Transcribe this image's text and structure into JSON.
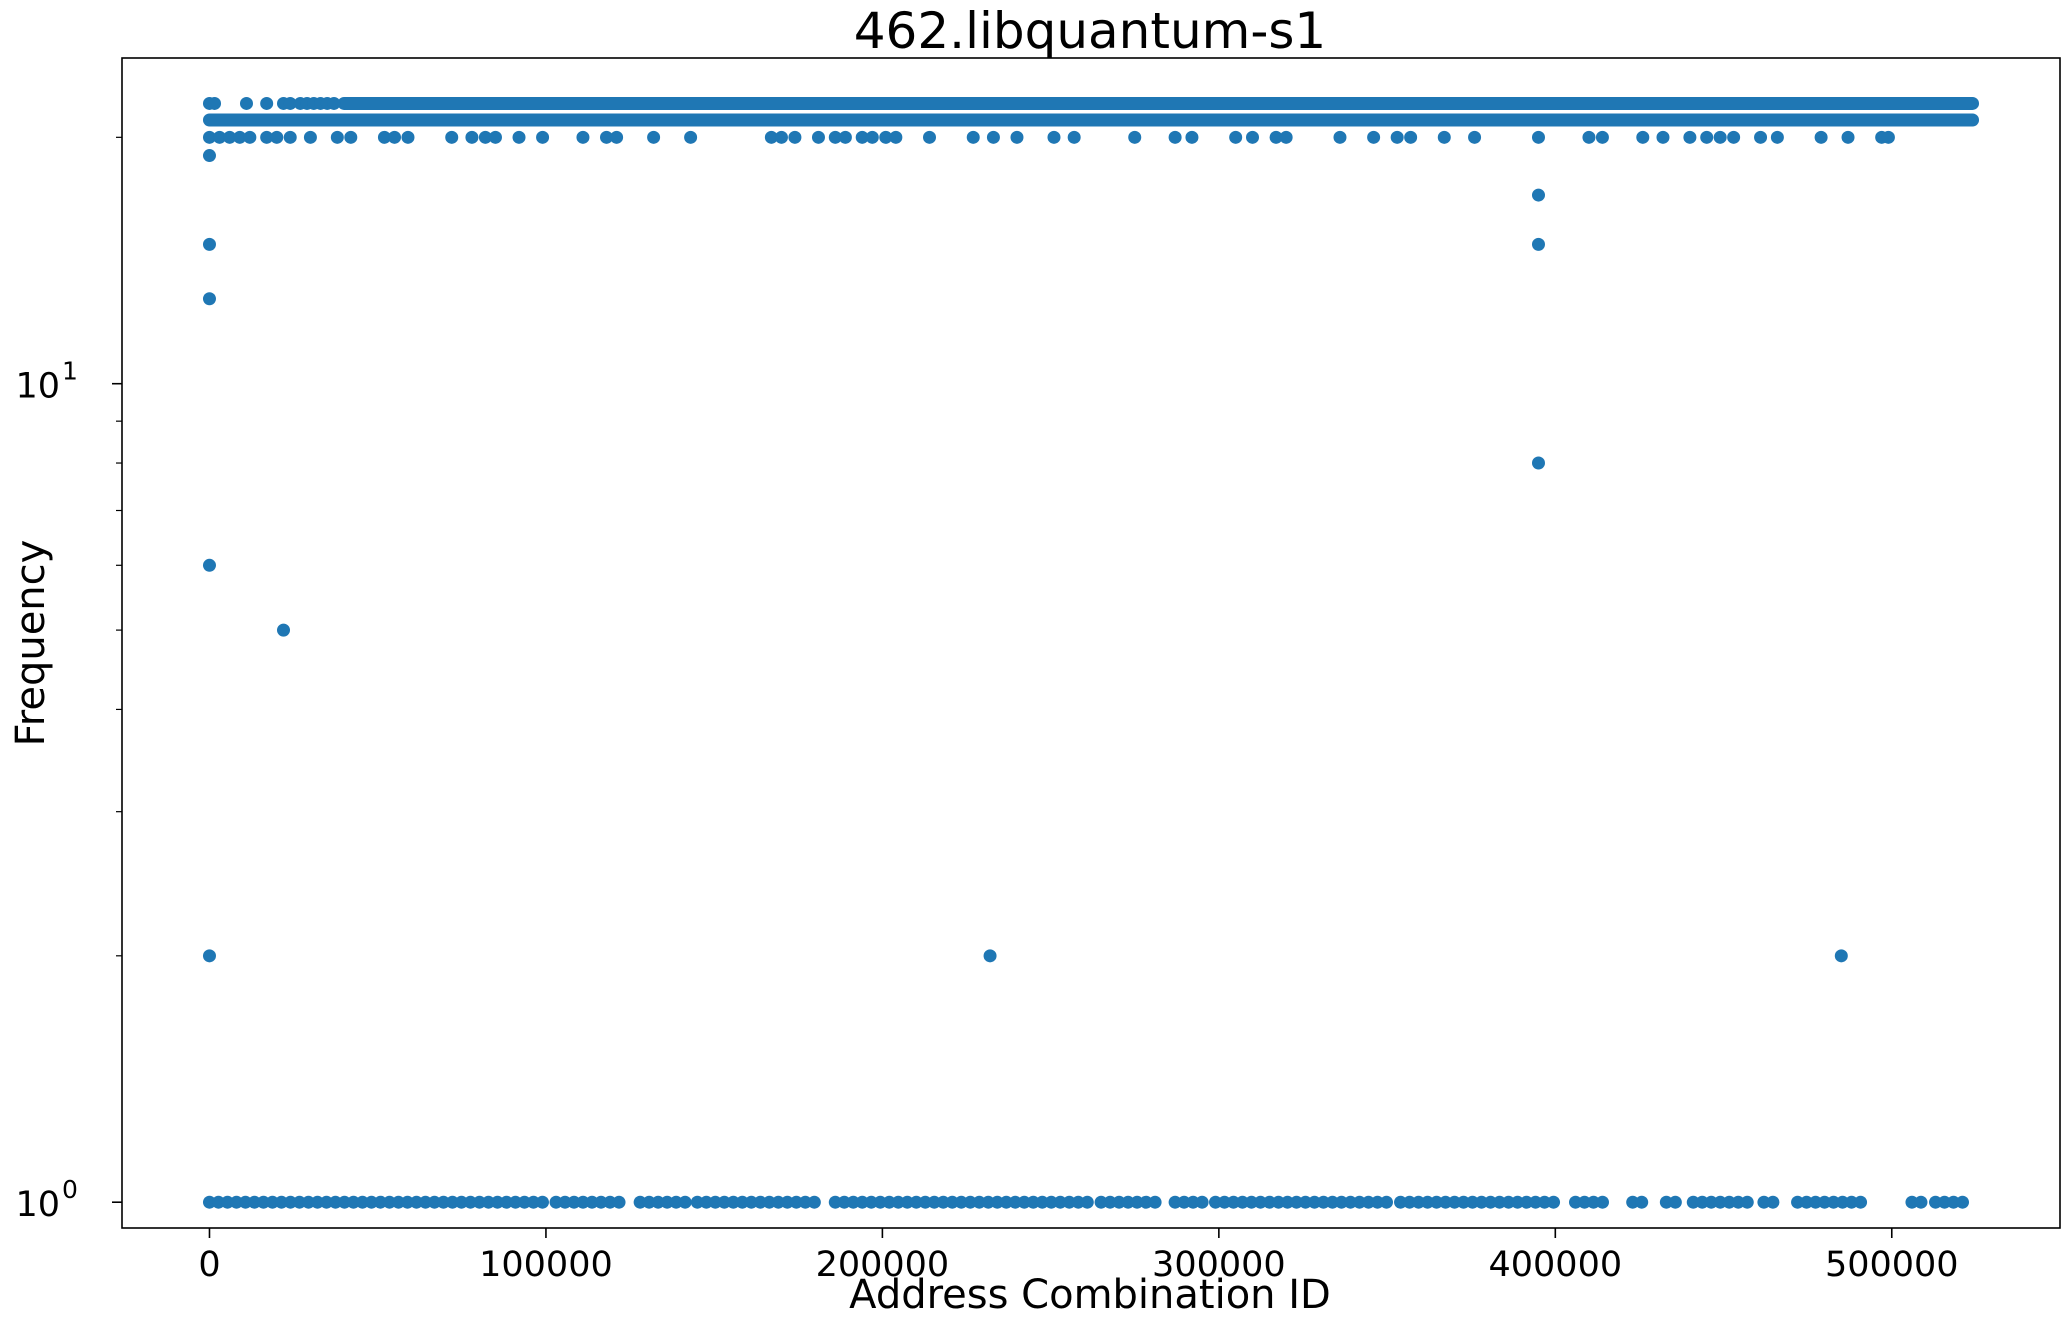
{
  "chart_data": {
    "type": "scatter",
    "title": "462.libquantum-s1",
    "xlabel": "Address Combination ID",
    "ylabel": "Frequency",
    "xlim": [
      -26000,
      550000
    ],
    "ylim": [
      0.93,
      25
    ],
    "yscale": "log",
    "grid": false,
    "legend": "none",
    "xticks": [
      0,
      100000,
      200000,
      300000,
      400000,
      500000
    ],
    "xtick_labels": [
      "0",
      "100000",
      "200000",
      "300000",
      "400000",
      "500000"
    ],
    "yticks": [
      1,
      10
    ],
    "ytick_labels": [
      {
        "base": "10",
        "exp": "0"
      },
      {
        "base": "10",
        "exp": "1"
      }
    ],
    "series": [
      {
        "color": "#1f77b4",
        "bands": [
          {
            "y": 22,
            "x_start": 40000,
            "x_end": 524000
          },
          {
            "y": 21,
            "x_start": 0,
            "x_end": 524000
          }
        ],
        "points": [
          {
            "x": 0,
            "y": 22
          },
          {
            "x": 1500,
            "y": 22
          },
          {
            "x": 11000,
            "y": 22
          },
          {
            "x": 17000,
            "y": 22
          },
          {
            "x": 22000,
            "y": 22
          },
          {
            "x": 24000,
            "y": 22
          },
          {
            "x": 27000,
            "y": 22
          },
          {
            "x": 29000,
            "y": 22
          },
          {
            "x": 31000,
            "y": 22
          },
          {
            "x": 33000,
            "y": 22
          },
          {
            "x": 35000,
            "y": 22
          },
          {
            "x": 37000,
            "y": 22
          },
          {
            "x": 0,
            "y": 20
          },
          {
            "x": 3000,
            "y": 20
          },
          {
            "x": 6000,
            "y": 20
          },
          {
            "x": 9000,
            "y": 20
          },
          {
            "x": 12000,
            "y": 20
          },
          {
            "x": 17000,
            "y": 20
          },
          {
            "x": 20000,
            "y": 20
          },
          {
            "x": 24000,
            "y": 20
          },
          {
            "x": 30000,
            "y": 20
          },
          {
            "x": 38000,
            "y": 20
          },
          {
            "x": 42000,
            "y": 20
          },
          {
            "x": 52000,
            "y": 20
          },
          {
            "x": 55000,
            "y": 20
          },
          {
            "x": 59000,
            "y": 20
          },
          {
            "x": 72000,
            "y": 20
          },
          {
            "x": 78000,
            "y": 20
          },
          {
            "x": 82000,
            "y": 20
          },
          {
            "x": 85000,
            "y": 20
          },
          {
            "x": 92000,
            "y": 20
          },
          {
            "x": 99000,
            "y": 20
          },
          {
            "x": 111000,
            "y": 20
          },
          {
            "x": 118000,
            "y": 20
          },
          {
            "x": 121000,
            "y": 20
          },
          {
            "x": 132000,
            "y": 20
          },
          {
            "x": 143000,
            "y": 20
          },
          {
            "x": 167000,
            "y": 20
          },
          {
            "x": 170000,
            "y": 20
          },
          {
            "x": 174000,
            "y": 20
          },
          {
            "x": 181000,
            "y": 20
          },
          {
            "x": 186000,
            "y": 20
          },
          {
            "x": 189000,
            "y": 20
          },
          {
            "x": 194000,
            "y": 20
          },
          {
            "x": 197000,
            "y": 20
          },
          {
            "x": 201000,
            "y": 20
          },
          {
            "x": 204000,
            "y": 20
          },
          {
            "x": 214000,
            "y": 20
          },
          {
            "x": 227000,
            "y": 20
          },
          {
            "x": 233000,
            "y": 20
          },
          {
            "x": 240000,
            "y": 20
          },
          {
            "x": 251000,
            "y": 20
          },
          {
            "x": 257000,
            "y": 20
          },
          {
            "x": 275000,
            "y": 20
          },
          {
            "x": 287000,
            "y": 20
          },
          {
            "x": 292000,
            "y": 20
          },
          {
            "x": 305000,
            "y": 20
          },
          {
            "x": 310000,
            "y": 20
          },
          {
            "x": 317000,
            "y": 20
          },
          {
            "x": 320000,
            "y": 20
          },
          {
            "x": 336000,
            "y": 20
          },
          {
            "x": 346000,
            "y": 20
          },
          {
            "x": 353000,
            "y": 20
          },
          {
            "x": 357000,
            "y": 20
          },
          {
            "x": 367000,
            "y": 20
          },
          {
            "x": 376000,
            "y": 20
          },
          {
            "x": 395000,
            "y": 20
          },
          {
            "x": 410000,
            "y": 20
          },
          {
            "x": 414000,
            "y": 20
          },
          {
            "x": 426000,
            "y": 20
          },
          {
            "x": 432000,
            "y": 20
          },
          {
            "x": 440000,
            "y": 20
          },
          {
            "x": 445000,
            "y": 20
          },
          {
            "x": 449000,
            "y": 20
          },
          {
            "x": 453000,
            "y": 20
          },
          {
            "x": 461000,
            "y": 20
          },
          {
            "x": 466000,
            "y": 20
          },
          {
            "x": 479000,
            "y": 20
          },
          {
            "x": 487000,
            "y": 20
          },
          {
            "x": 497000,
            "y": 20
          },
          {
            "x": 499000,
            "y": 20
          },
          {
            "x": 0,
            "y": 19
          },
          {
            "x": 0,
            "y": 14.8
          },
          {
            "x": 0,
            "y": 12.7
          },
          {
            "x": 0,
            "y": 6
          },
          {
            "x": 0,
            "y": 2
          },
          {
            "x": 22000,
            "y": 5
          },
          {
            "x": 395000,
            "y": 17
          },
          {
            "x": 395000,
            "y": 14.8
          },
          {
            "x": 395000,
            "y": 8
          },
          {
            "x": 232000,
            "y": 2
          },
          {
            "x": 485000,
            "y": 2
          }
        ],
        "ones": [
          {
            "x_start": 0,
            "x_end": 100000
          },
          {
            "x_start": 103000,
            "x_end": 123000
          },
          {
            "x_start": 128000,
            "x_end": 142000
          },
          {
            "x_start": 145000,
            "x_end": 180000
          },
          {
            "x_start": 186000,
            "x_end": 262000
          },
          {
            "x_start": 265000,
            "x_end": 283000
          },
          {
            "x_start": 287000,
            "x_end": 296000
          },
          {
            "x_start": 299000,
            "x_end": 351000
          },
          {
            "x_start": 354000,
            "x_end": 402000
          },
          {
            "x_start": 406000,
            "x_end": 415000
          },
          {
            "x_start": 423000,
            "x_end": 426000
          },
          {
            "x_start": 433000,
            "x_end": 436000
          },
          {
            "x_start": 441000,
            "x_end": 459000
          },
          {
            "x_start": 462000,
            "x_end": 466000
          },
          {
            "x_start": 472000,
            "x_end": 491000
          },
          {
            "x_start": 506000,
            "x_end": 510000
          },
          {
            "x_start": 513000,
            "x_end": 523000
          }
        ]
      }
    ]
  }
}
